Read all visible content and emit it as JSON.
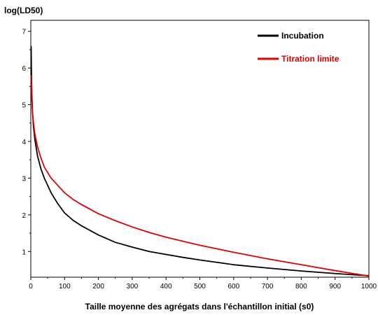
{
  "chart_data": {
    "type": "line",
    "title": "",
    "ylabel": "log(LD50)",
    "xlabel": "Taille moyenne des agrégats dans l'échantillon initial (s0)",
    "xlim": [
      0,
      1000
    ],
    "ylim": [
      0.3,
      7.3
    ],
    "xticks": [
      0,
      100,
      200,
      300,
      400,
      500,
      600,
      700,
      800,
      900,
      1000
    ],
    "yticks": [
      1,
      2,
      3,
      4,
      5,
      6,
      7
    ],
    "grid": false,
    "legend_position": "top-right",
    "series": [
      {
        "name": "Incubation",
        "color": "#000000",
        "x": [
          1,
          2,
          3,
          5,
          8,
          12,
          20,
          30,
          40,
          50,
          60,
          80,
          100,
          125,
          150,
          200,
          250,
          300,
          350,
          400,
          450,
          500,
          600,
          700,
          800,
          900,
          1000
        ],
        "y": [
          6.6,
          5.8,
          5.3,
          4.8,
          4.4,
          4.05,
          3.6,
          3.25,
          3.0,
          2.8,
          2.6,
          2.3,
          2.05,
          1.85,
          1.7,
          1.45,
          1.25,
          1.12,
          1.0,
          0.92,
          0.84,
          0.77,
          0.64,
          0.55,
          0.47,
          0.4,
          0.34
        ]
      },
      {
        "name": "Titration limite",
        "color": "#e00000",
        "x": [
          1,
          2,
          3,
          5,
          8,
          12,
          20,
          30,
          40,
          50,
          60,
          80,
          100,
          125,
          150,
          200,
          250,
          300,
          350,
          400,
          450,
          500,
          600,
          700,
          800,
          900,
          1000
        ],
        "y": [
          5.8,
          5.4,
          5.15,
          4.8,
          4.5,
          4.2,
          3.85,
          3.55,
          3.3,
          3.15,
          3.0,
          2.8,
          2.6,
          2.42,
          2.28,
          2.03,
          1.84,
          1.67,
          1.52,
          1.39,
          1.28,
          1.17,
          0.98,
          0.8,
          0.64,
          0.48,
          0.33
        ]
      }
    ]
  }
}
